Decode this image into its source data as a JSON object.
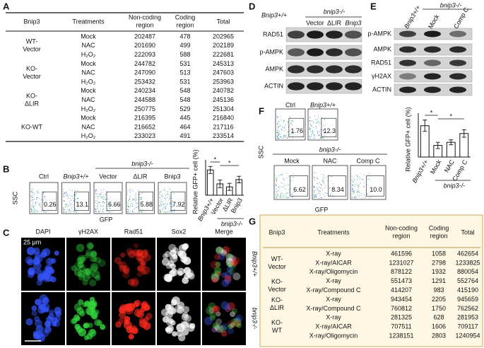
{
  "panel_A": {
    "label": "A",
    "table": {
      "headers": [
        [
          "Bnip3"
        ],
        [
          "Treatments"
        ],
        [
          "Non-coding",
          "region"
        ],
        [
          "Coding",
          "region"
        ],
        [
          "Total"
        ]
      ],
      "groups": [
        {
          "label": [
            "WT-",
            "Vector"
          ],
          "rows": [
            {
              "color": "#23962f",
              "cells": [
                "Mock",
                "202487",
                "478",
                "202965"
              ]
            },
            {
              "color": "#2b3fb0",
              "cells": [
                "NAC",
                "201690",
                "499",
                "202189"
              ]
            },
            {
              "color": "#111111",
              "cells": [
                "H₂O₂",
                "222093",
                "588",
                "222681"
              ]
            }
          ]
        },
        {
          "label": [
            "KO-",
            "Vector"
          ],
          "rows": [
            {
              "color": "#23962f",
              "cells": [
                "Mock",
                "244782",
                "531",
                "245313"
              ]
            },
            {
              "color": "#2b3fb0",
              "cells": [
                "NAC",
                "247090",
                "513",
                "247603"
              ]
            },
            {
              "color": "#111111",
              "cells": [
                "H₂O₂",
                "253432",
                "531",
                "253963"
              ]
            }
          ]
        },
        {
          "label": [
            "KO-",
            "ΔLIR"
          ],
          "rows": [
            {
              "color": "#23962f",
              "cells": [
                "Mock",
                "240234",
                "548",
                "240782"
              ]
            },
            {
              "color": "#2b3fb0",
              "cells": [
                "NAC",
                "244588",
                "548",
                "245136"
              ]
            },
            {
              "color": "#111111",
              "cells": [
                "H₂O₂",
                "250775",
                "529",
                "251304"
              ]
            }
          ]
        },
        {
          "label": [
            "KO-WT"
          ],
          "rows": [
            {
              "color": "#23962f",
              "cells": [
                "Mock",
                "216395",
                "445",
                "216840"
              ]
            },
            {
              "color": "#2b3fb0",
              "cells": [
                "NAC",
                "216652",
                "464",
                "217116"
              ]
            },
            {
              "color": "#111111",
              "cells": [
                "H₂O₂",
                "233023",
                "491",
                "233514"
              ]
            }
          ]
        }
      ]
    }
  },
  "panel_B": {
    "label": "B",
    "flow": {
      "labels": [
        "Ctrl",
        "Bnip3+/+",
        "Vector",
        "ΔLIR",
        "Bnip3"
      ],
      "values": [
        "0.26",
        "13.1",
        "6.66",
        "5.88",
        "7.92"
      ],
      "group_label": "bnip3-/-",
      "xlabel": "GFP",
      "ylabel": "SSC"
    },
    "chart_data": {
      "type": "bar",
      "ylabel": "Relative GFP+ cell (%)",
      "categories": [
        "Bnip3+/+",
        "Vector",
        "ΔLIR",
        "Bnip3"
      ],
      "values": [
        100,
        45,
        33,
        62
      ],
      "errors": [
        14,
        15,
        14,
        13
      ],
      "ylim": [
        0,
        140
      ],
      "group_label": "bnip3-/-",
      "annotations": [
        "*",
        "*"
      ]
    }
  },
  "panel_C": {
    "label": "C",
    "columns": [
      "DAPI",
      "γH2AX",
      "Rad51",
      "Sox2",
      "Merge"
    ],
    "rows": [
      "Bnip3+/+",
      "bnip3-/-"
    ],
    "scale": "25 μm"
  },
  "panel_D": {
    "label": "D",
    "header": {
      "wt": "Bnip3+/+",
      "group": "bnip3-/-",
      "lanes": [
        "Vector",
        "ΔLIR",
        "Bnip3"
      ]
    },
    "rows": [
      "RAD51",
      "p-AMPK",
      "AMPK",
      "ACTIN"
    ]
  },
  "panel_E": {
    "label": "E",
    "header": {
      "wt": "Bnip3+/+",
      "group": "bnip3-/-",
      "lanes": [
        "Mock",
        "Comp C"
      ]
    },
    "rows": [
      "p-AMPK",
      "AMPK",
      "RAD51",
      "γH2AX",
      "ACTIN"
    ]
  },
  "panel_F": {
    "label": "F",
    "flow": {
      "labels": [
        "Ctrl",
        "Bnip3+/+",
        "Mock",
        "NAC",
        "Comp C"
      ],
      "values": [
        "1.76",
        "12.3",
        "6.62",
        "8.34",
        "10.0"
      ],
      "group_label": "bnip3-/-",
      "xlabel": "GFP",
      "ylabel": "SSC"
    },
    "chart_data": {
      "type": "bar",
      "ylabel": "Relative GFP+ cell (%)",
      "categories": [
        "Bnip3+/+",
        "Mock",
        "NAC",
        "Comp C"
      ],
      "values": [
        100,
        37,
        47,
        75
      ],
      "errors": [
        18,
        10,
        8,
        12
      ],
      "ylim": [
        0,
        140
      ],
      "group_label": "bnip3-/-",
      "annotations": [
        "*",
        "*"
      ]
    }
  },
  "panel_G": {
    "label": "G",
    "table": {
      "headers": [
        [
          "Bnip3"
        ],
        [
          "Treatments"
        ],
        [
          "Non-coding",
          "region"
        ],
        [
          "Coding",
          "region"
        ],
        [
          "Total"
        ]
      ],
      "groups": [
        {
          "label": [
            "WT-",
            "Vector"
          ],
          "rows": [
            {
              "color": "#2f4fb5",
              "cells": [
                "X-ray",
                "461596",
                "1058",
                "462654"
              ]
            },
            {
              "color": "#8a2fa3",
              "cells": [
                "X-ray/AICAR",
                "1231027",
                "2798",
                "1233825"
              ]
            },
            {
              "color": "#a0151a",
              "cells": [
                "X-ray/Oligomycin",
                "878122",
                "1932",
                "880054"
              ]
            }
          ]
        },
        {
          "label": [
            "KO-",
            "Vector"
          ],
          "rows": [
            {
              "color": "#2f4fb5",
              "cells": [
                "X-ray",
                "551473",
                "1291",
                "552764"
              ]
            },
            {
              "color": "#2a9c2e",
              "cells": [
                "X-ray/Compound C",
                "414207",
                "983",
                "415190"
              ]
            }
          ]
        },
        {
          "label": [
            "KO-",
            "ΔLIR"
          ],
          "rows": [
            {
              "color": "#2f4fb5",
              "cells": [
                "X-ray",
                "943454",
                "2205",
                "945659"
              ]
            },
            {
              "color": "#2a9c2e",
              "cells": [
                "X-ray/Compound C",
                "760812",
                "1750",
                "762562"
              ]
            }
          ]
        },
        {
          "label": [
            "KO-",
            "WT"
          ],
          "rows": [
            {
              "color": "#2f4fb5",
              "cells": [
                "X-ray",
                "281325",
                "628",
                "281953"
              ]
            },
            {
              "color": "#8a2fa3",
              "cells": [
                "X-ray/AICAR",
                "707511",
                "1606",
                "709117"
              ]
            },
            {
              "color": "#a0151a",
              "cells": [
                "X-ray/Oligomycin",
                "1238151",
                "2803",
                "1240954"
              ]
            }
          ]
        }
      ]
    }
  }
}
